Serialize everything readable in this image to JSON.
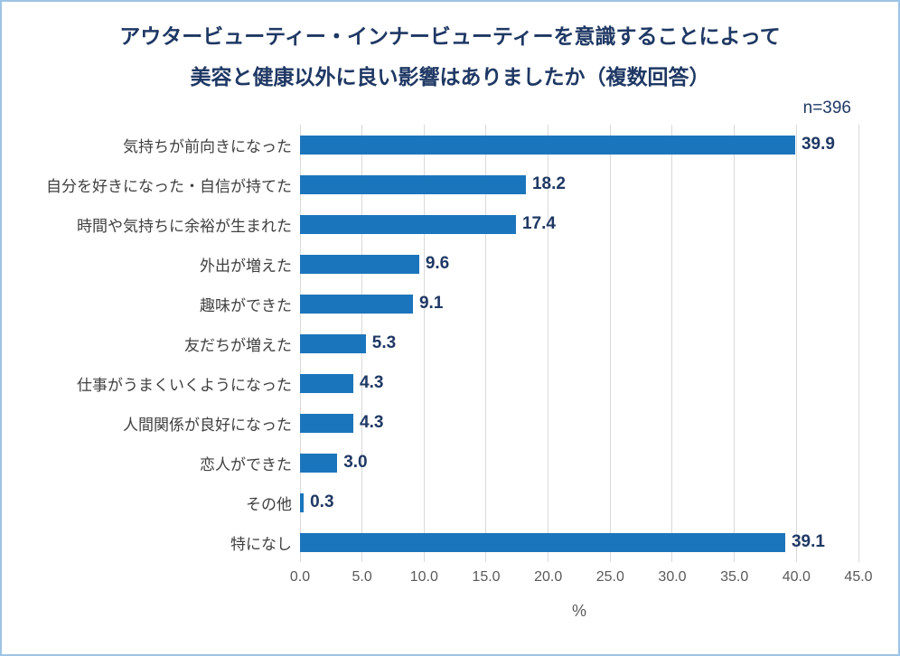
{
  "chart_data": {
    "type": "bar",
    "orientation": "horizontal",
    "title_line1": "アウタービューティー・インナービューティーを意識することによって",
    "title_line2": "美容と健康以外に良い影響はありましたか（複数回答）",
    "sample_label": "n=396",
    "categories": [
      "気持ちが前向きになった",
      "自分を好きになった・自信が持てた",
      "時間や気持ちに余裕が生まれた",
      "外出が増えた",
      "趣味ができた",
      "友だちが増えた",
      "仕事がうまくいくようになった",
      "人間関係が良好になった",
      "恋人ができた",
      "その他",
      "特になし"
    ],
    "values": [
      39.9,
      18.2,
      17.4,
      9.6,
      9.1,
      5.3,
      4.3,
      4.3,
      3.0,
      0.3,
      39.1
    ],
    "xlabel": "%",
    "xlim": [
      0,
      45
    ],
    "xticks": [
      0,
      5,
      10,
      15,
      20,
      25,
      30,
      35,
      40,
      45
    ],
    "x_tick_labels": [
      "0.0",
      "5.0",
      "10.0",
      "15.0",
      "20.0",
      "25.0",
      "30.0",
      "35.0",
      "40.0",
      "45.0"
    ],
    "grid": true,
    "legend": "none",
    "bar_color": "#1b75bc",
    "title_color": "#1f3864",
    "value_label_color": "#1f3864",
    "gridline_color": "#d9d9d9",
    "frame_border_color": "#9dc3e6"
  }
}
